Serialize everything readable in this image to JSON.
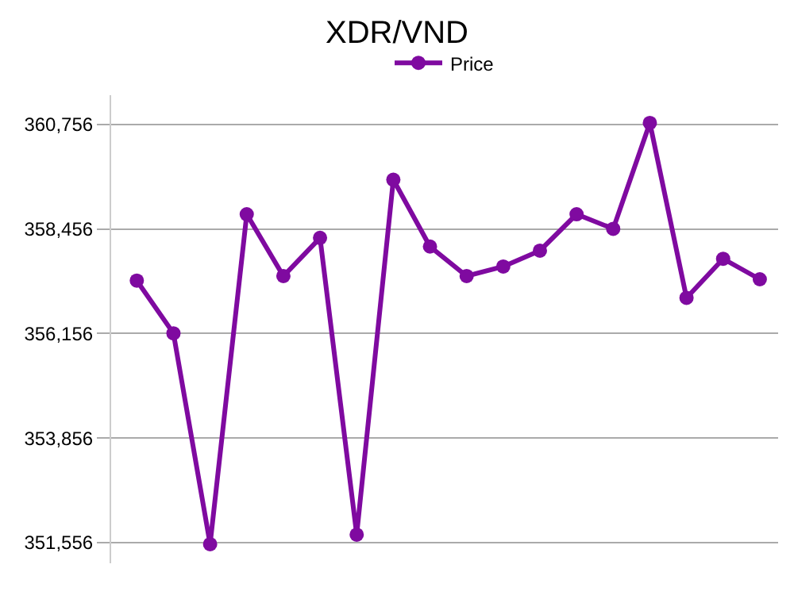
{
  "chart_data": {
    "type": "line",
    "title": "XDR/VND",
    "categories": [
      null,
      null,
      null,
      null,
      null,
      null,
      null,
      null,
      null,
      null,
      null,
      null,
      null,
      null,
      null,
      null,
      null,
      null
    ],
    "series": [
      {
        "name": "Price",
        "color": "#7f0aa0",
        "values": [
          357320,
          356160,
          351520,
          358780,
          357420,
          358260,
          351730,
          359540,
          358070,
          357420,
          357630,
          357980,
          358780,
          358460,
          360790,
          356940,
          357800,
          357350
        ]
      }
    ],
    "ylim": [
      351100,
      361400
    ],
    "yticks": [
      {
        "value": 351556,
        "label": "351,556"
      },
      {
        "value": 353856,
        "label": "353,856"
      },
      {
        "value": 356156,
        "label": "356,156"
      },
      {
        "value": 358456,
        "label": "358,456"
      },
      {
        "value": 360756,
        "label": "360,756"
      }
    ],
    "grid": "y",
    "legend": "top",
    "marker": "circle",
    "line_style": "solid"
  }
}
